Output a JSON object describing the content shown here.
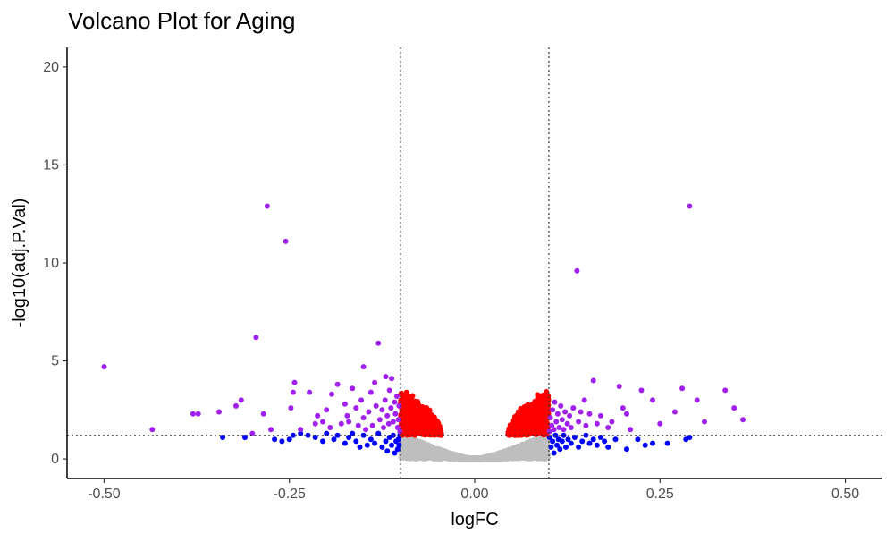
{
  "chart_data": {
    "type": "scatter",
    "title": "Volcano Plot for Aging",
    "xlabel": "logFC",
    "ylabel": "-log10(adj.P.Val)",
    "xlim": [
      -0.55,
      0.55
    ],
    "ylim": [
      -1.0,
      21.0
    ],
    "x_ticks": [
      -0.5,
      -0.25,
      0.0,
      0.25,
      0.5
    ],
    "x_tick_labels": [
      "-0.50",
      "-0.25",
      "0.00",
      "0.25",
      "0.50"
    ],
    "y_ticks": [
      0,
      5,
      10,
      15,
      20
    ],
    "y_tick_labels": [
      "0",
      "5",
      "10",
      "15",
      "20"
    ],
    "thresholds": {
      "logFC": [
        -0.1,
        0.1
      ],
      "neg_log10_p": 1.2
    },
    "grid": false,
    "legend": "none",
    "colors": {
      "not_significant": "#bebebe",
      "p_only": "#ff0000",
      "fc_only": "#0000ff",
      "p_and_fc": "#a020f0"
    },
    "series": [
      {
        "color_key": "p_and_fc",
        "points": [
          [
            -0.5,
            4.7
          ],
          [
            -0.435,
            1.5
          ],
          [
            -0.38,
            2.3
          ],
          [
            -0.373,
            2.3
          ],
          [
            -0.345,
            2.4
          ],
          [
            -0.322,
            2.7
          ],
          [
            -0.315,
            3.0
          ],
          [
            -0.3,
            1.3
          ],
          [
            -0.295,
            6.2
          ],
          [
            -0.285,
            2.3
          ],
          [
            -0.28,
            12.9
          ],
          [
            -0.275,
            1.5
          ],
          [
            -0.255,
            11.1
          ],
          [
            -0.248,
            2.6
          ],
          [
            -0.245,
            3.4
          ],
          [
            -0.243,
            3.9
          ],
          [
            -0.235,
            1.5
          ],
          [
            -0.223,
            3.4
          ],
          [
            -0.215,
            1.8
          ],
          [
            -0.212,
            2.2
          ],
          [
            -0.205,
            1.9
          ],
          [
            -0.2,
            2.5
          ],
          [
            -0.195,
            1.6
          ],
          [
            -0.193,
            3.3
          ],
          [
            -0.185,
            3.8
          ],
          [
            -0.18,
            1.8
          ],
          [
            -0.175,
            2.8
          ],
          [
            -0.172,
            2.2
          ],
          [
            -0.17,
            1.9
          ],
          [
            -0.165,
            3.6
          ],
          [
            -0.16,
            2.6
          ],
          [
            -0.157,
            1.7
          ],
          [
            -0.153,
            3.0
          ],
          [
            -0.15,
            2.1
          ],
          [
            -0.15,
            4.7
          ],
          [
            -0.147,
            1.5
          ],
          [
            -0.143,
            2.4
          ],
          [
            -0.14,
            3.4
          ],
          [
            -0.138,
            1.7
          ],
          [
            -0.135,
            3.9
          ],
          [
            -0.133,
            2.7
          ],
          [
            -0.13,
            5.9
          ],
          [
            -0.128,
            2.0
          ],
          [
            -0.125,
            2.5
          ],
          [
            -0.123,
            1.6
          ],
          [
            -0.121,
            3.0
          ],
          [
            -0.12,
            4.2
          ],
          [
            -0.118,
            2.2
          ],
          [
            -0.116,
            1.8
          ],
          [
            -0.115,
            3.5
          ],
          [
            -0.113,
            2.6
          ],
          [
            -0.112,
            4.1
          ],
          [
            -0.11,
            1.9
          ],
          [
            -0.108,
            2.9
          ],
          [
            -0.107,
            2.3
          ],
          [
            -0.105,
            3.2
          ],
          [
            -0.104,
            1.6
          ],
          [
            -0.103,
            2.0
          ],
          [
            -0.102,
            2.7
          ],
          [
            -0.101,
            1.4
          ],
          [
            0.101,
            1.4
          ],
          [
            0.102,
            2.1
          ],
          [
            0.104,
            1.7
          ],
          [
            0.105,
            2.5
          ],
          [
            0.107,
            1.5
          ],
          [
            0.108,
            2.9
          ],
          [
            0.11,
            1.9
          ],
          [
            0.112,
            2.3
          ],
          [
            0.114,
            1.6
          ],
          [
            0.116,
            2.7
          ],
          [
            0.118,
            2.0
          ],
          [
            0.12,
            1.5
          ],
          [
            0.122,
            2.4
          ],
          [
            0.125,
            1.8
          ],
          [
            0.128,
            2.2
          ],
          [
            0.13,
            1.6
          ],
          [
            0.133,
            2.6
          ],
          [
            0.138,
            9.6
          ],
          [
            0.14,
            1.9
          ],
          [
            0.143,
            2.4
          ],
          [
            0.148,
            3.0
          ],
          [
            0.15,
            1.7
          ],
          [
            0.155,
            2.3
          ],
          [
            0.16,
            4.0
          ],
          [
            0.165,
            1.8
          ],
          [
            0.17,
            2.2
          ],
          [
            0.18,
            1.6
          ],
          [
            0.185,
            1.9
          ],
          [
            0.195,
            3.7
          ],
          [
            0.2,
            2.6
          ],
          [
            0.205,
            2.3
          ],
          [
            0.21,
            1.5
          ],
          [
            0.225,
            3.5
          ],
          [
            0.24,
            3.0
          ],
          [
            0.25,
            1.8
          ],
          [
            0.27,
            2.4
          ],
          [
            0.28,
            3.6
          ],
          [
            0.29,
            12.9
          ],
          [
            0.3,
            3.0
          ],
          [
            0.31,
            1.9
          ],
          [
            0.338,
            3.5
          ],
          [
            0.35,
            2.6
          ],
          [
            0.362,
            2.0
          ]
        ]
      },
      {
        "color_key": "p_only",
        "generated": {
          "x_ranges": [
            [
              -0.1,
              -0.045
            ],
            [
              0.045,
              0.1
            ]
          ],
          "y_floor": 1.2,
          "y_peak": 3.7,
          "count": 1100
        }
      },
      {
        "color_key": "fc_only",
        "points": [
          [
            -0.34,
            1.1
          ],
          [
            -0.31,
            1.1
          ],
          [
            -0.27,
            1.0
          ],
          [
            -0.26,
            0.9
          ],
          [
            -0.25,
            1.0
          ],
          [
            -0.245,
            1.2
          ],
          [
            -0.235,
            1.3
          ],
          [
            -0.225,
            1.2
          ],
          [
            -0.215,
            1.1
          ],
          [
            -0.205,
            0.9
          ],
          [
            -0.2,
            1.3
          ],
          [
            -0.19,
            1.0
          ],
          [
            -0.185,
            1.2
          ],
          [
            -0.175,
            0.8
          ],
          [
            -0.17,
            1.1
          ],
          [
            -0.165,
            1.3
          ],
          [
            -0.16,
            0.9
          ],
          [
            -0.155,
            0.6
          ],
          [
            -0.15,
            1.2
          ],
          [
            -0.145,
            0.7
          ],
          [
            -0.14,
            1.0
          ],
          [
            -0.135,
            0.8
          ],
          [
            -0.13,
            1.3
          ],
          [
            -0.125,
            0.6
          ],
          [
            -0.12,
            0.9
          ],
          [
            -0.118,
            0.4
          ],
          [
            -0.115,
            1.1
          ],
          [
            -0.112,
            0.7
          ],
          [
            -0.11,
            1.2
          ],
          [
            -0.108,
            0.3
          ],
          [
            -0.106,
            0.9
          ],
          [
            -0.104,
            0.5
          ],
          [
            -0.103,
            1.0
          ],
          [
            -0.102,
            0.7
          ],
          [
            -0.101,
            1.2
          ],
          [
            0.101,
            1.1
          ],
          [
            0.103,
            0.6
          ],
          [
            0.105,
            0.9
          ],
          [
            0.107,
            0.3
          ],
          [
            0.109,
            1.2
          ],
          [
            0.111,
            0.7
          ],
          [
            0.113,
            1.0
          ],
          [
            0.115,
            0.5
          ],
          [
            0.118,
            0.9
          ],
          [
            0.12,
            1.2
          ],
          [
            0.123,
            0.6
          ],
          [
            0.126,
            1.0
          ],
          [
            0.13,
            0.8
          ],
          [
            0.135,
            1.1
          ],
          [
            0.14,
            0.6
          ],
          [
            0.145,
            0.9
          ],
          [
            0.15,
            1.2
          ],
          [
            0.155,
            0.8
          ],
          [
            0.16,
            1.0
          ],
          [
            0.165,
            0.7
          ],
          [
            0.17,
            1.1
          ],
          [
            0.175,
            0.9
          ],
          [
            0.18,
            0.6
          ],
          [
            0.19,
            1.0
          ],
          [
            0.205,
            0.5
          ],
          [
            0.22,
            1.0
          ],
          [
            0.23,
            0.7
          ],
          [
            0.24,
            0.8
          ],
          [
            0.26,
            0.8
          ],
          [
            0.285,
            1.0
          ],
          [
            0.29,
            1.1
          ]
        ]
      },
      {
        "color_key": "not_significant",
        "generated": {
          "x_ranges": [
            [
              -0.1,
              0.1
            ]
          ],
          "y_floor": 0.0,
          "y_peak": 1.2,
          "count": 1700
        }
      }
    ]
  }
}
